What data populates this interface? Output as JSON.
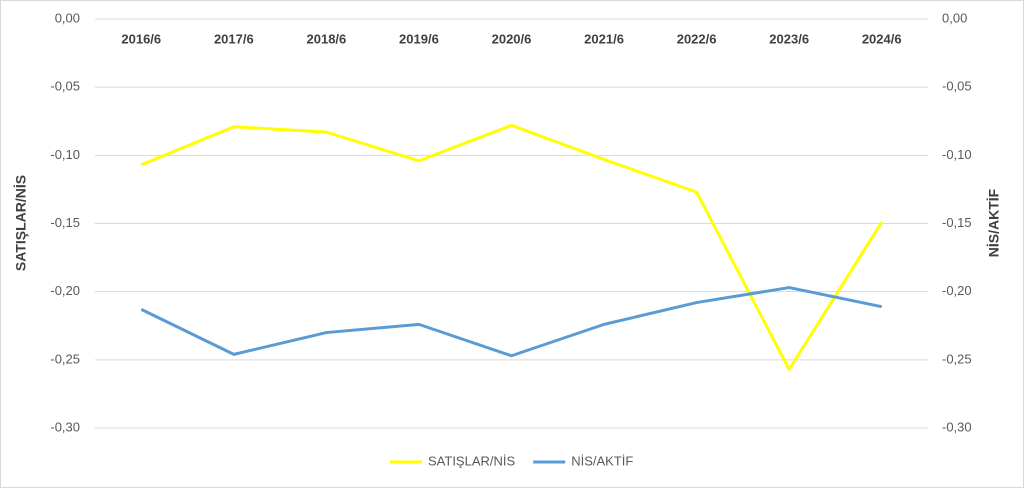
{
  "chart_data": {
    "type": "line",
    "categories": [
      "2016/6",
      "2017/6",
      "2018/6",
      "2019/6",
      "2020/6",
      "2021/6",
      "2022/6",
      "2023/6",
      "2024/6"
    ],
    "series": [
      {
        "name": "SATIŞLAR/NİS",
        "color": "#ffff00",
        "values": [
          -0.107,
          -0.079,
          -0.083,
          -0.104,
          -0.078,
          -0.103,
          -0.127,
          -0.257,
          -0.149
        ]
      },
      {
        "name": "NİS/AKTİF",
        "color": "#5b9bd5",
        "axis": "y2",
        "values": [
          -0.213,
          -0.246,
          -0.23,
          -0.224,
          -0.247,
          -0.224,
          -0.208,
          -0.197,
          -0.211
        ]
      }
    ],
    "y_label": "SATIŞLAR/NİS",
    "y2_label": "NİS/AKTİF",
    "ylim": [
      -0.3,
      0.0
    ],
    "yticks": [
      {
        "value": 0,
        "label": "0,00"
      },
      {
        "value": -0.05,
        "label": "-0,05"
      },
      {
        "value": -0.1,
        "label": "-0,10"
      },
      {
        "value": -0.15,
        "label": "-0,15"
      },
      {
        "value": -0.2,
        "label": "-0,20"
      },
      {
        "value": -0.25,
        "label": "-0,25"
      },
      {
        "value": -0.3,
        "label": "-0,30"
      }
    ],
    "y2lim": [
      -0.3,
      0.0
    ],
    "y2ticks": [
      {
        "value": 0,
        "label": "0,00"
      },
      {
        "value": -0.05,
        "label": "-0,05"
      },
      {
        "value": -0.1,
        "label": "-0,10"
      },
      {
        "value": -0.15,
        "label": "-0,15"
      },
      {
        "value": -0.2,
        "label": "-0,20"
      },
      {
        "value": -0.25,
        "label": "-0,25"
      },
      {
        "value": -0.3,
        "label": "-0,30"
      }
    ],
    "grid": true,
    "legend": "bottom"
  }
}
